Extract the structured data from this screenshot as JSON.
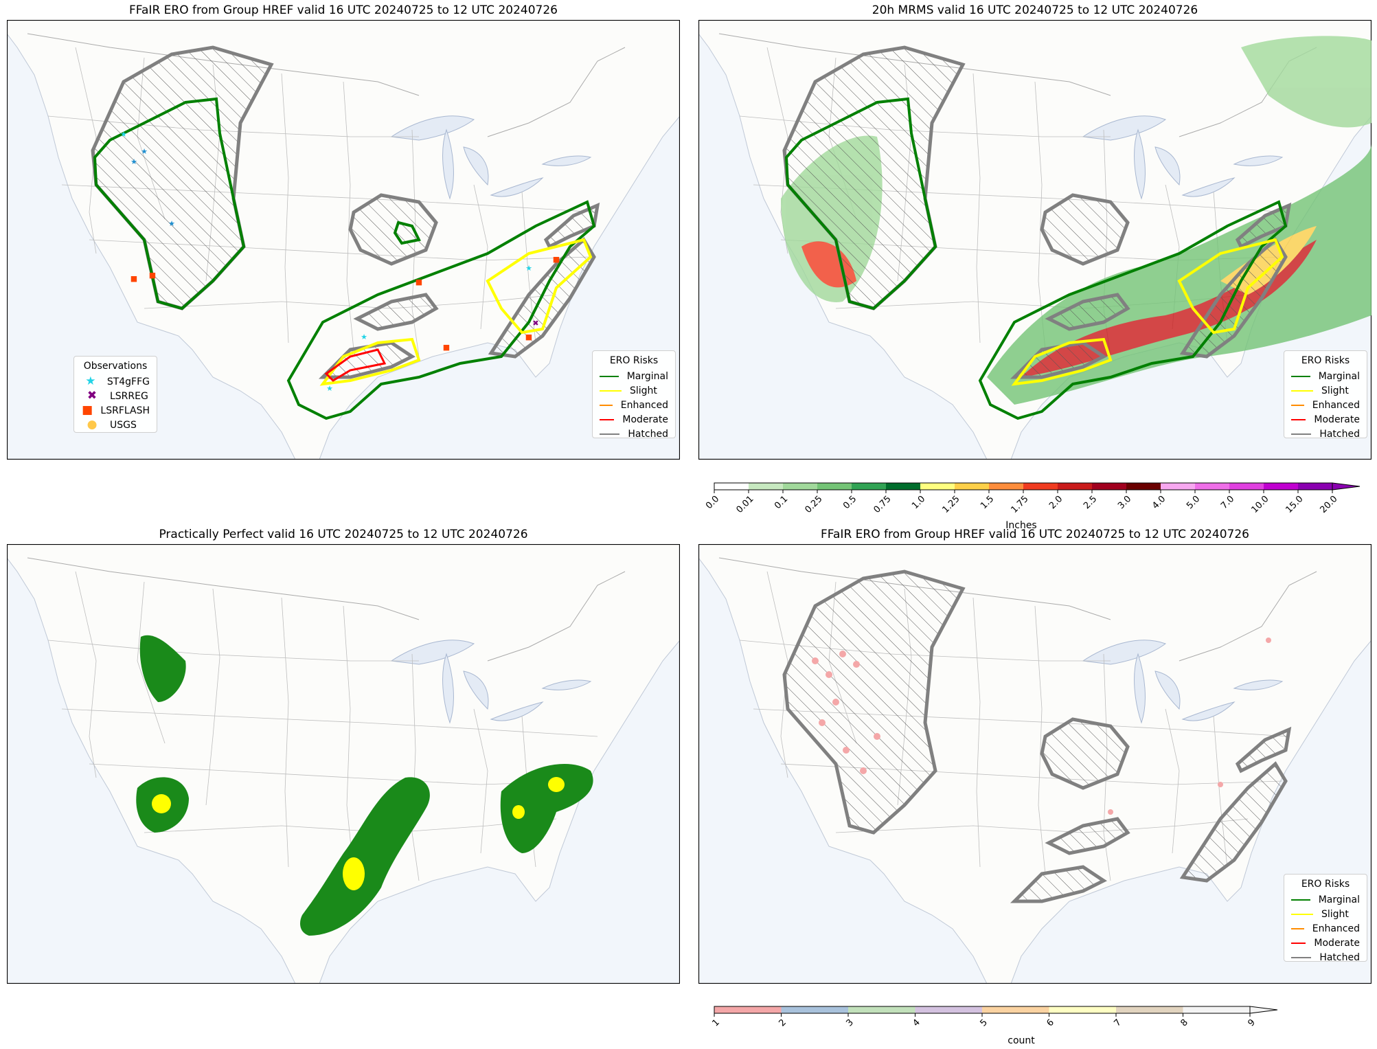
{
  "panels": [
    {
      "id": "tl",
      "title": "FFaIR ERO from Group HREF valid 16 UTC 20240725 to 12 UTC 20240726"
    },
    {
      "id": "tr",
      "title": "20h MRMS valid 16 UTC 20240725 to 12 UTC 20240726"
    },
    {
      "id": "bl",
      "title": "Practically Perfect valid 16 UTC 20240725 to 12 UTC 20240726"
    },
    {
      "id": "br",
      "title": "FFaIR ERO from Group HREF valid 16 UTC 20240725 to 12 UTC 20240726"
    }
  ],
  "ero_legend": {
    "title": "ERO Risks",
    "items": [
      {
        "label": "Marginal",
        "color": "#008000"
      },
      {
        "label": "Slight",
        "color": "#ffff00"
      },
      {
        "label": "Enhanced",
        "color": "#ff8c00"
      },
      {
        "label": "Moderate",
        "color": "#ff0000"
      },
      {
        "label": "Hatched",
        "color": "#808080"
      }
    ]
  },
  "obs_legend": {
    "title": "Observations",
    "items": [
      {
        "label": "ST4gFFG",
        "color": "#22d3e6",
        "symbol": "★"
      },
      {
        "label": "LSRREG",
        "color": "#800080",
        "symbol": "✖"
      },
      {
        "label": "LSRFLASH",
        "color": "#ff4500",
        "symbol": "■"
      },
      {
        "label": "USGS",
        "color": "#ffc84a",
        "symbol": "●"
      }
    ]
  },
  "precip_colorbar": {
    "label": "Inches",
    "ticks": [
      "0.0",
      "0.01",
      "0.1",
      "0.25",
      "0.5",
      "0.75",
      "1.0",
      "1.25",
      "1.5",
      "1.75",
      "2.0",
      "2.5",
      "3.0",
      "4.0",
      "5.0",
      "7.0",
      "10.0",
      "15.0",
      "20.0"
    ],
    "colors": [
      "#ffffff",
      "#c7e9c0",
      "#a1d99b",
      "#74c476",
      "#31a354",
      "#006d2c",
      "#ffff80",
      "#fdd049",
      "#fd8d3c",
      "#f03b20",
      "#c91b1b",
      "#a1001e",
      "#6a0000",
      "#f7a8f0",
      "#ef6fe8",
      "#e040e0",
      "#c000d0",
      "#8a00b0"
    ]
  },
  "count_colorbar": {
    "label": "count",
    "ticks": [
      "1",
      "2",
      "3",
      "4",
      "5",
      "6",
      "7",
      "8",
      "9"
    ],
    "colors": [
      "#f4a7a8",
      "#a9c2dc",
      "#c2e1bb",
      "#d4c2e0",
      "#fbd3a2",
      "#ffffc4",
      "#e2d4bf",
      "#f4f4f4"
    ]
  }
}
